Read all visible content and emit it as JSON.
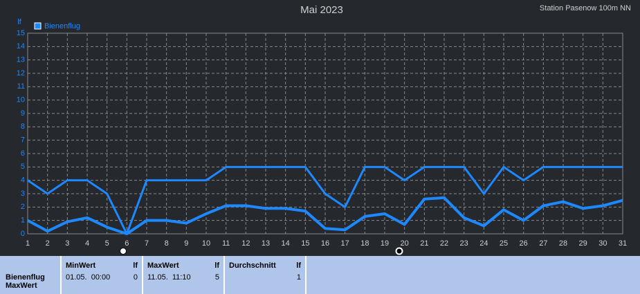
{
  "chart_data": {
    "type": "line",
    "title": "Mai 2023",
    "subtitle": "Station Pasenow 100m NN",
    "y_label": "lf",
    "x": [
      1,
      2,
      3,
      4,
      5,
      6,
      7,
      8,
      9,
      10,
      11,
      12,
      13,
      14,
      15,
      16,
      17,
      18,
      19,
      20,
      21,
      22,
      23,
      24,
      25,
      26,
      27,
      28,
      29,
      30,
      31
    ],
    "series": [
      {
        "name": "Bienenflug",
        "color": "#1e88ff",
        "values": [
          4,
          3,
          4,
          4,
          3,
          0,
          4,
          4,
          4,
          4,
          5,
          5,
          5,
          5,
          5,
          3,
          2,
          5,
          5,
          4,
          5,
          5,
          5,
          3,
          5,
          4,
          5,
          5,
          5,
          5,
          5
        ]
      },
      {
        "color": "#1e88ff",
        "values": [
          1.0,
          0.2,
          0.9,
          1.2,
          0.5,
          0,
          1.0,
          1.0,
          0.8,
          1.5,
          2.1,
          2.1,
          1.9,
          1.9,
          1.7,
          0.4,
          0.3,
          1.3,
          1.5,
          0.7,
          2.6,
          2.7,
          1.2,
          0.6,
          1.8,
          1.0,
          2.1,
          2.4,
          1.9,
          2.1,
          2.5
        ]
      }
    ],
    "xlim": [
      1,
      31
    ],
    "xticks": [
      1,
      2,
      3,
      4,
      5,
      6,
      7,
      8,
      9,
      10,
      11,
      12,
      13,
      14,
      15,
      16,
      17,
      18,
      19,
      20,
      21,
      22,
      23,
      24,
      25,
      26,
      27,
      28,
      29,
      30,
      31
    ],
    "ylim": [
      0,
      15
    ],
    "yticks": [
      0,
      1,
      2,
      3,
      4,
      5,
      6,
      7,
      8,
      9,
      10,
      11,
      12,
      13,
      14,
      15
    ],
    "grid": true
  },
  "table": {
    "row_label": [
      "Bienenflug",
      "MaxWert"
    ],
    "columns": [
      {
        "name": "MinWert",
        "unit": "lf",
        "time": "01.05.  00:00",
        "value": 0
      },
      {
        "name": "MaxWert",
        "unit": "lf",
        "time": "11.05.  11:10",
        "value": 5
      },
      {
        "name": "Durchschnitt",
        "unit": "lf",
        "value": 1
      }
    ]
  }
}
